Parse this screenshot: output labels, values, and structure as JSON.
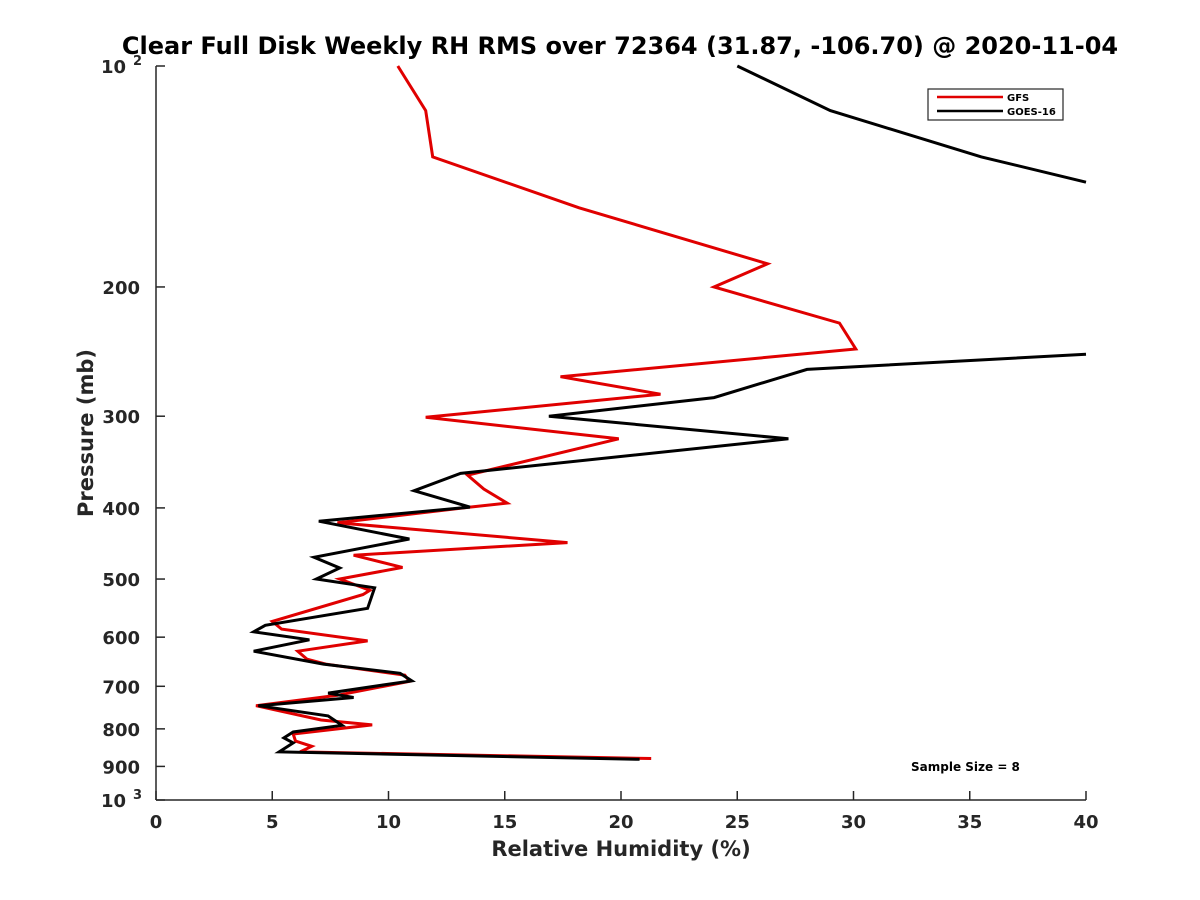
{
  "chart_data": {
    "type": "line",
    "title": "Clear Full Disk Weekly RH RMS over 72364 (31.87, -106.70) @ 2020-11-04",
    "xlabel": "Relative Humidity (%)",
    "ylabel": "Pressure (mb)",
    "xlim": [
      0,
      40
    ],
    "ylim": [
      100,
      1000
    ],
    "y_scale": "log",
    "y_reversed": true,
    "x_ticks": [
      "0",
      "5",
      "10",
      "15",
      "20",
      "25",
      "30",
      "35",
      "40"
    ],
    "y_ticks": [
      {
        "value": 100,
        "label": "10",
        "sup": "2"
      },
      {
        "value": 200,
        "label": "200",
        "sup": ""
      },
      {
        "value": 300,
        "label": "300",
        "sup": ""
      },
      {
        "value": 400,
        "label": "400",
        "sup": ""
      },
      {
        "value": 500,
        "label": "500",
        "sup": ""
      },
      {
        "value": 600,
        "label": "600",
        "sup": ""
      },
      {
        "value": 700,
        "label": "700",
        "sup": ""
      },
      {
        "value": 800,
        "label": "800",
        "sup": ""
      },
      {
        "value": 900,
        "label": "900",
        "sup": ""
      },
      {
        "value": 1000,
        "label": "10",
        "sup": "3"
      }
    ],
    "grid": false,
    "legend_position": "top-right",
    "annotation": "Sample Size = 8",
    "series": [
      {
        "name": "GFS",
        "color": "#e00000",
        "points": [
          [
            10.4,
            100
          ],
          [
            11.6,
            115
          ],
          [
            11.9,
            133
          ],
          [
            18.2,
            156
          ],
          [
            26.3,
            186
          ],
          [
            24.0,
            200
          ],
          [
            29.4,
            224
          ],
          [
            30.1,
            243
          ],
          [
            17.4,
            265
          ],
          [
            21.7,
            280
          ],
          [
            11.6,
            301
          ],
          [
            19.9,
            322
          ],
          [
            13.4,
            361
          ],
          [
            14.1,
            377
          ],
          [
            15.1,
            394
          ],
          [
            13.5,
            399
          ],
          [
            7.8,
            419
          ],
          [
            17.7,
            446
          ],
          [
            8.5,
            464
          ],
          [
            10.6,
            482
          ],
          [
            7.9,
            500
          ],
          [
            9.2,
            518
          ],
          [
            8.9,
            525
          ],
          [
            5.0,
            571
          ],
          [
            5.4,
            585
          ],
          [
            9.1,
            607
          ],
          [
            6.1,
            627
          ],
          [
            6.5,
            643
          ],
          [
            7.3,
            653
          ],
          [
            10.7,
            676
          ],
          [
            10.9,
            689
          ],
          [
            7.8,
            720
          ],
          [
            4.3,
            744
          ],
          [
            7.1,
            778
          ],
          [
            9.3,
            790
          ],
          [
            5.9,
            813
          ],
          [
            6.0,
            831
          ],
          [
            6.7,
            845
          ],
          [
            6.2,
            860
          ],
          [
            21.3,
            878
          ]
        ]
      },
      {
        "name": "GOES-16",
        "color": "#000000",
        "points": [
          [
            25.0,
            100
          ],
          [
            29.0,
            115
          ],
          [
            35.5,
            133
          ],
          [
            40.0,
            144
          ],
          [
            null,
            null
          ],
          [
            40.0,
            247
          ],
          [
            28.0,
            259
          ],
          [
            24.0,
            283
          ],
          [
            16.9,
            300
          ],
          [
            27.2,
            322
          ],
          [
            13.1,
            359
          ],
          [
            11.1,
            379
          ],
          [
            13.5,
            399
          ],
          [
            7.0,
            417
          ],
          [
            10.9,
            441
          ],
          [
            6.8,
            467
          ],
          [
            7.9,
            483
          ],
          [
            6.9,
            500
          ],
          [
            9.4,
            514
          ],
          [
            9.1,
            548
          ],
          [
            4.7,
            578
          ],
          [
            4.2,
            590
          ],
          [
            6.6,
            605
          ],
          [
            4.2,
            627
          ],
          [
            7.2,
            653
          ],
          [
            10.5,
            672
          ],
          [
            11.0,
            688
          ],
          [
            7.4,
            715
          ],
          [
            8.5,
            725
          ],
          [
            4.4,
            744
          ],
          [
            7.4,
            768
          ],
          [
            8.0,
            791
          ],
          [
            5.9,
            808
          ],
          [
            5.5,
            823
          ],
          [
            5.9,
            836
          ],
          [
            5.3,
            860
          ],
          [
            20.8,
            880
          ]
        ]
      }
    ]
  }
}
